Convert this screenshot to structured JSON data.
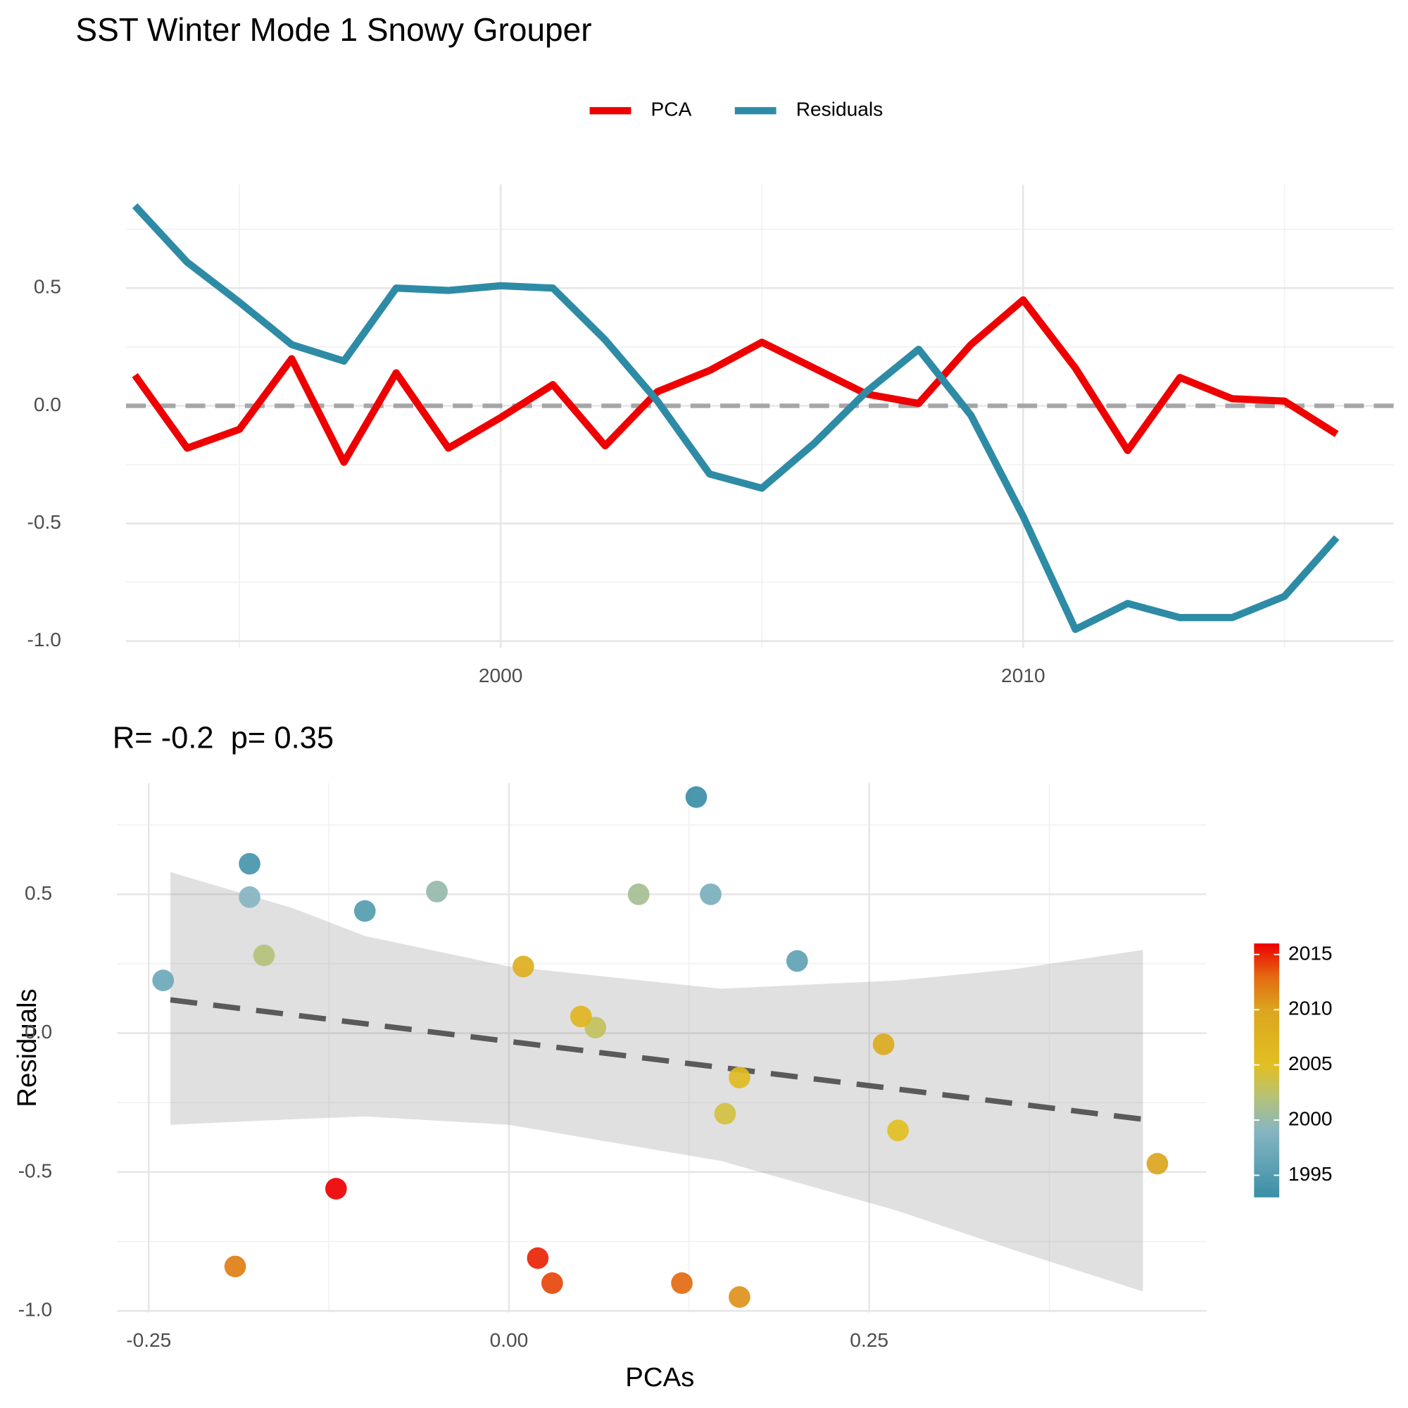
{
  "chart_data": [
    {
      "type": "line",
      "title": "SST Winter Mode 1 Snowy Grouper",
      "x": [
        1993,
        1994,
        1995,
        1996,
        1997,
        1998,
        1999,
        2000,
        2001,
        2002,
        2003,
        2004,
        2005,
        2006,
        2007,
        2008,
        2009,
        2010,
        2011,
        2012,
        2013,
        2014,
        2015,
        2016
      ],
      "series": [
        {
          "name": "PCA",
          "color": "#ee0000",
          "values": [
            0.13,
            -0.18,
            -0.1,
            0.2,
            -0.24,
            0.14,
            -0.18,
            -0.05,
            0.09,
            -0.17,
            0.06,
            0.15,
            0.27,
            0.16,
            0.05,
            0.01,
            0.26,
            0.45,
            0.16,
            -0.19,
            0.12,
            0.03,
            0.02,
            -0.12
          ]
        },
        {
          "name": "Residuals",
          "color": "#2e8ba6",
          "values": [
            0.85,
            0.61,
            0.44,
            0.26,
            0.19,
            0.5,
            0.49,
            0.51,
            0.5,
            0.28,
            0.02,
            -0.29,
            -0.35,
            -0.16,
            0.06,
            0.24,
            -0.04,
            -0.47,
            -0.95,
            -0.84,
            -0.9,
            -0.9,
            -0.81,
            -0.56
          ]
        }
      ],
      "xlim": [
        1992.83,
        2017.09
      ],
      "xticks": [
        2000,
        2010
      ],
      "xminor": [
        1995,
        2005,
        2015
      ],
      "ylim": [
        -1.03,
        0.94
      ],
      "yticks": [
        {
          "value": -1,
          "label": "-1.0"
        },
        -0.5,
        {
          "value": 0,
          "label": "0.0"
        },
        0.5
      ],
      "yminor": [
        -0.75,
        -0.25,
        0.25,
        0.75
      ],
      "hline": 0,
      "grid": true
    },
    {
      "type": "scatter",
      "title": "R= -0.2  p= 0.35",
      "xlabel": "PCAs",
      "ylabel": "Residuals",
      "x": [
        0.13,
        -0.18,
        -0.1,
        0.2,
        -0.24,
        0.14,
        -0.18,
        -0.05,
        0.09,
        -0.17,
        0.06,
        0.15,
        0.27,
        0.16,
        0.05,
        0.01,
        0.26,
        0.45,
        0.16,
        -0.19,
        0.12,
        0.03,
        0.02,
        -0.12
      ],
      "y": [
        0.85,
        0.61,
        0.44,
        0.26,
        0.19,
        0.5,
        0.49,
        0.51,
        0.5,
        0.28,
        0.02,
        -0.29,
        -0.35,
        -0.16,
        0.06,
        0.24,
        -0.04,
        -0.47,
        -0.95,
        -0.84,
        -0.9,
        -0.9,
        -0.81,
        -0.56
      ],
      "years": [
        1993,
        1994,
        1995,
        1996,
        1997,
        1998,
        1999,
        2000,
        2001,
        2002,
        2003,
        2004,
        2005,
        2006,
        2007,
        2008,
        2009,
        2010,
        2011,
        2012,
        2013,
        2014,
        2015,
        2016
      ],
      "colorscale": [
        [
          1993,
          "#3a8fa6"
        ],
        [
          1999,
          "#86b5c2"
        ],
        [
          2002,
          "#b4c27a"
        ],
        [
          2005,
          "#e2bf22"
        ],
        [
          2010,
          "#dba520"
        ],
        [
          2013,
          "#e36a10"
        ],
        [
          2016,
          "#ee0000"
        ]
      ],
      "colorlim": [
        1993,
        2016
      ],
      "colorticks": [
        1995,
        2000,
        2005,
        2010,
        2015
      ],
      "fit": {
        "x": [
          -0.235,
          0.44
        ],
        "y": [
          0.12,
          -0.31
        ]
      },
      "band": {
        "x": [
          -0.235,
          -0.15,
          -0.1,
          0.0,
          0.147,
          0.27,
          0.35,
          0.44
        ],
        "upper": [
          0.58,
          0.45,
          0.35,
          0.24,
          0.16,
          0.19,
          0.23,
          0.3
        ],
        "lower": [
          -0.33,
          -0.31,
          -0.3,
          -0.33,
          -0.46,
          -0.64,
          -0.78,
          -0.93
        ]
      },
      "xlim": [
        -0.272,
        0.484
      ],
      "xticks": [
        {
          "value": -0.25,
          "label": "-0.25"
        },
        {
          "value": 0,
          "label": "0.00"
        },
        0.25
      ],
      "xminor": [
        -0.125,
        0.125,
        0.375
      ],
      "ylim": [
        -1.006,
        0.9
      ],
      "yticks": [
        {
          "value": -1,
          "label": "-1.0"
        },
        -0.5,
        {
          "value": 0,
          "label": "0.0"
        },
        0.5
      ],
      "yminor": [
        -0.75,
        -0.25,
        0.25,
        0.75
      ],
      "grid": true
    }
  ]
}
